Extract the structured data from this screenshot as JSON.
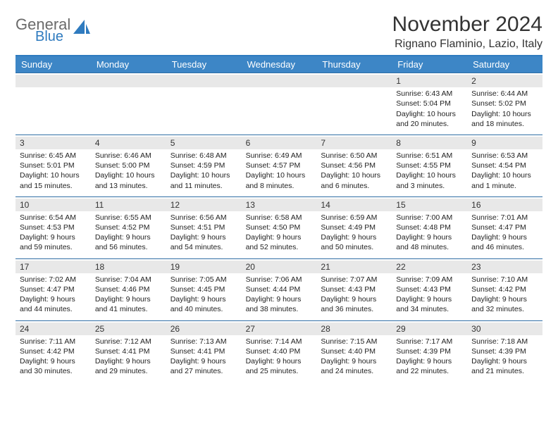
{
  "brand": {
    "general": "General",
    "blue": "Blue",
    "icon_color": "#2f7bbf"
  },
  "title": "November 2024",
  "location": "Rignano Flaminio, Lazio, Italy",
  "days_of_week": [
    "Sunday",
    "Monday",
    "Tuesday",
    "Wednesday",
    "Thursday",
    "Friday",
    "Saturday"
  ],
  "colors": {
    "header_bar": "#3d86c6",
    "week_border": "#2e6da4",
    "daynum_bg": "#e8e8e8",
    "text": "#333333"
  },
  "weeks": [
    [
      {
        "n": "",
        "empty": true
      },
      {
        "n": "",
        "empty": true
      },
      {
        "n": "",
        "empty": true
      },
      {
        "n": "",
        "empty": true
      },
      {
        "n": "",
        "empty": true
      },
      {
        "n": "1",
        "sunrise": "Sunrise: 6:43 AM",
        "sunset": "Sunset: 5:04 PM",
        "d1": "Daylight: 10 hours",
        "d2": "and 20 minutes."
      },
      {
        "n": "2",
        "sunrise": "Sunrise: 6:44 AM",
        "sunset": "Sunset: 5:02 PM",
        "d1": "Daylight: 10 hours",
        "d2": "and 18 minutes."
      }
    ],
    [
      {
        "n": "3",
        "sunrise": "Sunrise: 6:45 AM",
        "sunset": "Sunset: 5:01 PM",
        "d1": "Daylight: 10 hours",
        "d2": "and 15 minutes."
      },
      {
        "n": "4",
        "sunrise": "Sunrise: 6:46 AM",
        "sunset": "Sunset: 5:00 PM",
        "d1": "Daylight: 10 hours",
        "d2": "and 13 minutes."
      },
      {
        "n": "5",
        "sunrise": "Sunrise: 6:48 AM",
        "sunset": "Sunset: 4:59 PM",
        "d1": "Daylight: 10 hours",
        "d2": "and 11 minutes."
      },
      {
        "n": "6",
        "sunrise": "Sunrise: 6:49 AM",
        "sunset": "Sunset: 4:57 PM",
        "d1": "Daylight: 10 hours",
        "d2": "and 8 minutes."
      },
      {
        "n": "7",
        "sunrise": "Sunrise: 6:50 AM",
        "sunset": "Sunset: 4:56 PM",
        "d1": "Daylight: 10 hours",
        "d2": "and 6 minutes."
      },
      {
        "n": "8",
        "sunrise": "Sunrise: 6:51 AM",
        "sunset": "Sunset: 4:55 PM",
        "d1": "Daylight: 10 hours",
        "d2": "and 3 minutes."
      },
      {
        "n": "9",
        "sunrise": "Sunrise: 6:53 AM",
        "sunset": "Sunset: 4:54 PM",
        "d1": "Daylight: 10 hours",
        "d2": "and 1 minute."
      }
    ],
    [
      {
        "n": "10",
        "sunrise": "Sunrise: 6:54 AM",
        "sunset": "Sunset: 4:53 PM",
        "d1": "Daylight: 9 hours",
        "d2": "and 59 minutes."
      },
      {
        "n": "11",
        "sunrise": "Sunrise: 6:55 AM",
        "sunset": "Sunset: 4:52 PM",
        "d1": "Daylight: 9 hours",
        "d2": "and 56 minutes."
      },
      {
        "n": "12",
        "sunrise": "Sunrise: 6:56 AM",
        "sunset": "Sunset: 4:51 PM",
        "d1": "Daylight: 9 hours",
        "d2": "and 54 minutes."
      },
      {
        "n": "13",
        "sunrise": "Sunrise: 6:58 AM",
        "sunset": "Sunset: 4:50 PM",
        "d1": "Daylight: 9 hours",
        "d2": "and 52 minutes."
      },
      {
        "n": "14",
        "sunrise": "Sunrise: 6:59 AM",
        "sunset": "Sunset: 4:49 PM",
        "d1": "Daylight: 9 hours",
        "d2": "and 50 minutes."
      },
      {
        "n": "15",
        "sunrise": "Sunrise: 7:00 AM",
        "sunset": "Sunset: 4:48 PM",
        "d1": "Daylight: 9 hours",
        "d2": "and 48 minutes."
      },
      {
        "n": "16",
        "sunrise": "Sunrise: 7:01 AM",
        "sunset": "Sunset: 4:47 PM",
        "d1": "Daylight: 9 hours",
        "d2": "and 46 minutes."
      }
    ],
    [
      {
        "n": "17",
        "sunrise": "Sunrise: 7:02 AM",
        "sunset": "Sunset: 4:47 PM",
        "d1": "Daylight: 9 hours",
        "d2": "and 44 minutes."
      },
      {
        "n": "18",
        "sunrise": "Sunrise: 7:04 AM",
        "sunset": "Sunset: 4:46 PM",
        "d1": "Daylight: 9 hours",
        "d2": "and 41 minutes."
      },
      {
        "n": "19",
        "sunrise": "Sunrise: 7:05 AM",
        "sunset": "Sunset: 4:45 PM",
        "d1": "Daylight: 9 hours",
        "d2": "and 40 minutes."
      },
      {
        "n": "20",
        "sunrise": "Sunrise: 7:06 AM",
        "sunset": "Sunset: 4:44 PM",
        "d1": "Daylight: 9 hours",
        "d2": "and 38 minutes."
      },
      {
        "n": "21",
        "sunrise": "Sunrise: 7:07 AM",
        "sunset": "Sunset: 4:43 PM",
        "d1": "Daylight: 9 hours",
        "d2": "and 36 minutes."
      },
      {
        "n": "22",
        "sunrise": "Sunrise: 7:09 AM",
        "sunset": "Sunset: 4:43 PM",
        "d1": "Daylight: 9 hours",
        "d2": "and 34 minutes."
      },
      {
        "n": "23",
        "sunrise": "Sunrise: 7:10 AM",
        "sunset": "Sunset: 4:42 PM",
        "d1": "Daylight: 9 hours",
        "d2": "and 32 minutes."
      }
    ],
    [
      {
        "n": "24",
        "sunrise": "Sunrise: 7:11 AM",
        "sunset": "Sunset: 4:42 PM",
        "d1": "Daylight: 9 hours",
        "d2": "and 30 minutes."
      },
      {
        "n": "25",
        "sunrise": "Sunrise: 7:12 AM",
        "sunset": "Sunset: 4:41 PM",
        "d1": "Daylight: 9 hours",
        "d2": "and 29 minutes."
      },
      {
        "n": "26",
        "sunrise": "Sunrise: 7:13 AM",
        "sunset": "Sunset: 4:41 PM",
        "d1": "Daylight: 9 hours",
        "d2": "and 27 minutes."
      },
      {
        "n": "27",
        "sunrise": "Sunrise: 7:14 AM",
        "sunset": "Sunset: 4:40 PM",
        "d1": "Daylight: 9 hours",
        "d2": "and 25 minutes."
      },
      {
        "n": "28",
        "sunrise": "Sunrise: 7:15 AM",
        "sunset": "Sunset: 4:40 PM",
        "d1": "Daylight: 9 hours",
        "d2": "and 24 minutes."
      },
      {
        "n": "29",
        "sunrise": "Sunrise: 7:17 AM",
        "sunset": "Sunset: 4:39 PM",
        "d1": "Daylight: 9 hours",
        "d2": "and 22 minutes."
      },
      {
        "n": "30",
        "sunrise": "Sunrise: 7:18 AM",
        "sunset": "Sunset: 4:39 PM",
        "d1": "Daylight: 9 hours",
        "d2": "and 21 minutes."
      }
    ]
  ]
}
